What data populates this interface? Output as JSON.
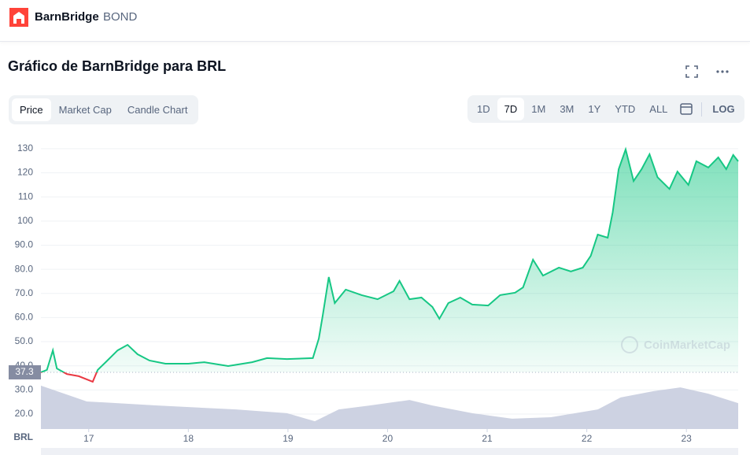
{
  "header": {
    "brand": "BarnBridge",
    "symbol": "BOND"
  },
  "title": "Gráfico de BarnBridge para BRL",
  "tabs": [
    "Price",
    "Market Cap",
    "Candle Chart"
  ],
  "ranges": [
    "1D",
    "7D",
    "1M",
    "3M",
    "1Y",
    "YTD",
    "ALL"
  ],
  "log": "LOG",
  "chart_data": {
    "type": "line",
    "watermark": "CoinMarketCap",
    "axis_label": "BRL",
    "baseline": 37.3,
    "color_up": "#16c784",
    "color_down": "#ea3943",
    "grid": true,
    "xlim": [
      16.52,
      23.52
    ],
    "xticks": [
      17,
      18,
      19,
      20,
      21,
      22,
      23
    ],
    "ylim": [
      13.8,
      132.9
    ],
    "yticks": [
      {
        "value": 20,
        "label": "20.0"
      },
      {
        "value": 30,
        "label": "30.0"
      },
      {
        "value": 40,
        "label": "40.0"
      },
      {
        "value": 50,
        "label": "50.0"
      },
      {
        "value": 60,
        "label": "60.0"
      },
      {
        "value": 70,
        "label": "70.0"
      },
      {
        "value": 80,
        "label": "80.0"
      },
      {
        "value": 90,
        "label": "90.0"
      },
      100,
      110,
      120,
      130
    ],
    "x": [
      16.52,
      16.58,
      16.64,
      16.68,
      16.78,
      16.9,
      17.04,
      17.09,
      17.17,
      17.29,
      17.39,
      17.49,
      17.61,
      17.77,
      18.0,
      18.16,
      18.4,
      18.64,
      18.79,
      18.99,
      19.25,
      19.31,
      19.35,
      19.41,
      19.47,
      19.58,
      19.74,
      19.9,
      20.06,
      20.12,
      20.22,
      20.34,
      20.45,
      20.52,
      20.61,
      20.73,
      20.85,
      21.01,
      21.13,
      21.28,
      21.36,
      21.46,
      21.56,
      21.72,
      21.84,
      21.96,
      22.04,
      22.11,
      22.21,
      22.26,
      22.32,
      22.39,
      22.47,
      22.55,
      22.63,
      22.71,
      22.83,
      22.91,
      23.02,
      23.1,
      23.22,
      23.32,
      23.4,
      23.47,
      23.52
    ],
    "values": [
      37.3,
      38.3,
      46.4,
      38.9,
      36.6,
      35.7,
      33.4,
      38.3,
      41.5,
      46.4,
      48.7,
      44.8,
      42.2,
      40.9,
      40.9,
      41.5,
      39.9,
      41.5,
      43.2,
      42.8,
      43.2,
      51.3,
      61.1,
      76.8,
      66.0,
      71.6,
      69.3,
      67.6,
      70.9,
      75.2,
      67.6,
      68.3,
      64.4,
      59.5,
      66.0,
      68.3,
      65.4,
      65.0,
      69.3,
      70.3,
      72.5,
      84.0,
      77.4,
      80.7,
      79.1,
      80.7,
      85.6,
      94.4,
      93.1,
      103.6,
      121.5,
      129.7,
      116.6,
      121.5,
      127.7,
      118.2,
      113.3,
      120.5,
      115.0,
      124.8,
      122.2,
      126.4,
      121.5,
      127.4,
      124.8
    ],
    "y2lim": [
      0,
      100
    ],
    "volume": {
      "color": "#cdd2e2",
      "x": [
        16.52,
        16.98,
        17.69,
        18.48,
        18.99,
        19.27,
        19.51,
        19.82,
        20.22,
        20.45,
        20.85,
        21.25,
        21.64,
        22.11,
        22.34,
        22.67,
        22.94,
        23.22,
        23.52
      ],
      "values": [
        15.1,
        9.6,
        8.2,
        6.8,
        5.5,
        2.7,
        6.8,
        8.2,
        10.1,
        8.2,
        5.5,
        3.6,
        4.1,
        6.8,
        11.0,
        13.2,
        14.5,
        12.3,
        9.0
      ]
    }
  }
}
